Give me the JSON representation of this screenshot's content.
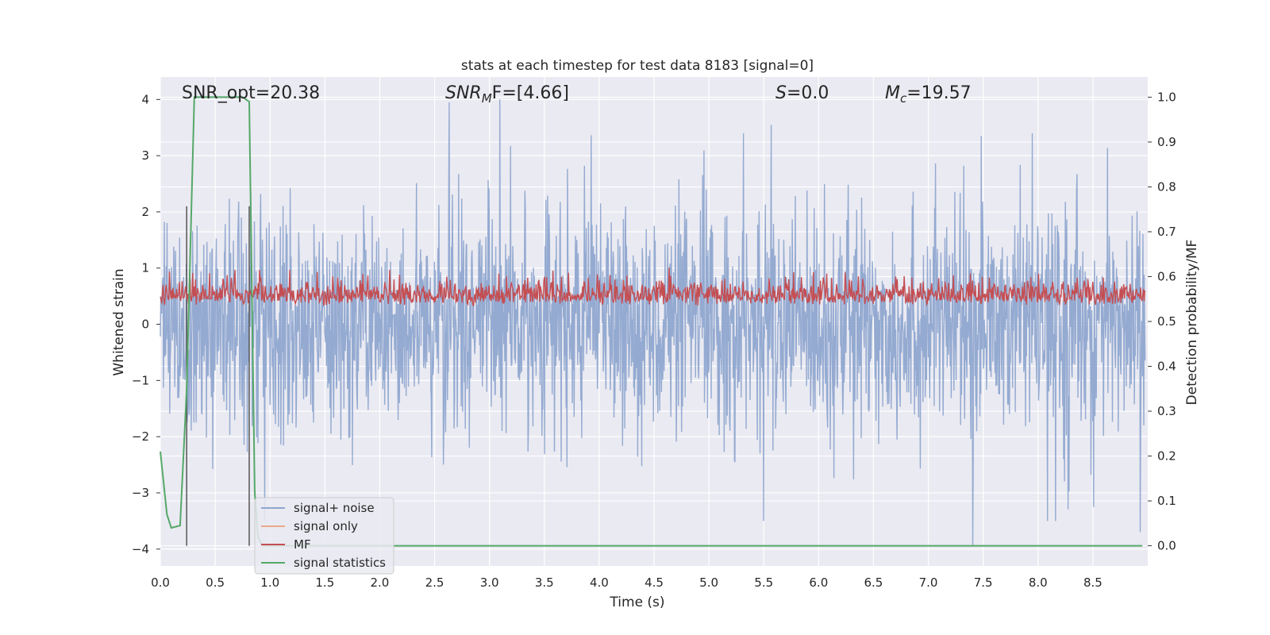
{
  "chart_data": {
    "type": "line",
    "title": "stats at each timestep for test data 8183 [signal=0]",
    "xlabel": "Time (s)",
    "ylabel_left": "Whitened strain",
    "ylabel_right": "Detection probability/MF",
    "xlim": [
      0.0,
      9.0
    ],
    "ylim_left": [
      -4.3,
      4.4
    ],
    "ylim_right": [
      -0.045,
      1.045
    ],
    "x_ticks": [
      "0.0",
      "0.5",
      "1.0",
      "1.5",
      "2.0",
      "2.5",
      "3.0",
      "3.5",
      "4.0",
      "4.5",
      "5.0",
      "5.5",
      "6.0",
      "6.5",
      "7.0",
      "7.5",
      "8.0",
      "8.5"
    ],
    "y_left_ticks": [
      "4",
      "3",
      "2",
      "1",
      "0",
      "−1",
      "−2",
      "−3",
      "−4"
    ],
    "y_right_ticks": [
      "1.0",
      "0.9",
      "0.8",
      "0.7",
      "0.6",
      "0.5",
      "0.4",
      "0.3",
      "0.2",
      "0.1",
      "0.0"
    ],
    "annotations": {
      "snr_opt": "SNR_opt=20.38",
      "snr_mf_a": "SNR",
      "snr_mf_sub": "M",
      "snr_mf_b": "F=[4.66]",
      "s_a": "S",
      "s_b": "=0.0",
      "mc_a": "M",
      "mc_sub": "c",
      "mc_b": "=19.57"
    },
    "legend": {
      "position": "lower-left",
      "items": [
        "signal+ noise",
        "signal only",
        "MF",
        "signal statistics"
      ]
    },
    "vertical_markers_s": [
      0.24,
      0.81
    ],
    "series": [
      {
        "name": "signal+ noise",
        "axis": "left",
        "color": "#8fa6cf",
        "description": "whitened noise, roughly |strain| < 2.5 with spikes to about 4",
        "notable_peaks": [
          [
            2.64,
            3.95
          ],
          [
            3.1,
            4.0
          ],
          [
            5.58,
            3.55
          ],
          [
            7.42,
            -3.95
          ],
          [
            8.95,
            -3.7
          ]
        ]
      },
      {
        "name": "signal only",
        "axis": "left",
        "color": "#e8a98a",
        "values": []
      },
      {
        "name": "MF",
        "axis": "right",
        "color": "#c44e52",
        "description": "matched-filter output fluctuating between about 0.50 and 0.62",
        "band": [
          0.5,
          0.62
        ],
        "notable_peaks": [
          [
            4.65,
            0.62
          ]
        ]
      },
      {
        "name": "signal statistics",
        "axis": "right",
        "color": "#55a868",
        "x": [
          0.0,
          0.06,
          0.1,
          0.18,
          0.24,
          0.31,
          0.4,
          0.5,
          0.6,
          0.7,
          0.75,
          0.81,
          0.86,
          0.89,
          0.93,
          1.0,
          2.0,
          3.0,
          4.0,
          5.0,
          6.0,
          7.0,
          8.0,
          8.95
        ],
        "y": [
          0.21,
          0.07,
          0.04,
          0.045,
          0.35,
          1.0,
          1.0,
          1.0,
          1.0,
          1.0,
          1.0,
          0.99,
          0.12,
          0.02,
          0.0,
          0.0,
          0.0,
          0.0,
          0.0,
          0.0,
          0.0,
          0.0,
          0.0,
          0.0
        ]
      }
    ],
    "colors": {
      "background": "#eaeaf2",
      "grid": "#ffffff",
      "marker_line": "#555555",
      "legend_bg": "#eaeaf2"
    }
  }
}
